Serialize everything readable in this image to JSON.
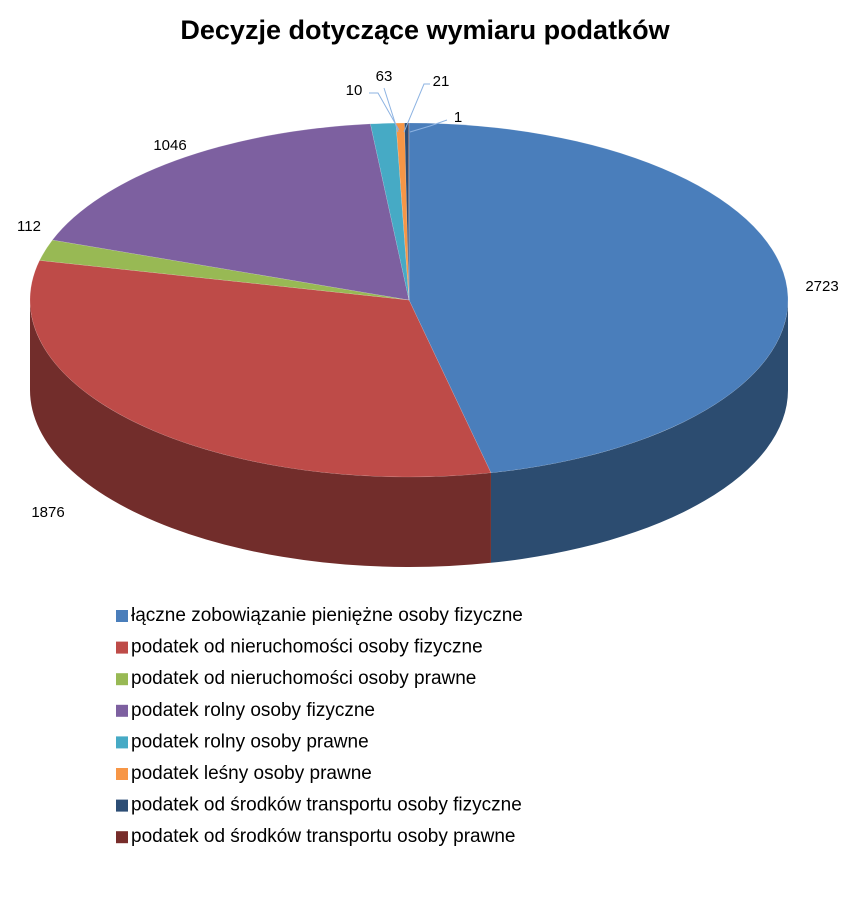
{
  "chart_data": {
    "type": "pie3d",
    "title": "Decyzje dotyczące wymiaru podatków",
    "categories": [
      "łączne zobowiązanie pieniężne osoby fizyczne",
      "podatek od nieruchomości osoby fizyczne",
      "podatek od nieruchomości osoby prawne",
      "podatek rolny osoby fizyczne",
      "podatek rolny osoby prawne",
      "podatek leśny osoby prawne",
      "podatek od środków transportu osoby fizyczne",
      "podatek od środków transportu osoby prawne"
    ],
    "values": [
      2723,
      1876,
      112,
      1046,
      63,
      21,
      10,
      1
    ],
    "colors": [
      "#4a7ebb",
      "#be4b48",
      "#98b954",
      "#7d60a0",
      "#46aac5",
      "#f79646",
      "#2c4d75",
      "#772c2a"
    ],
    "legend": "bottom"
  }
}
